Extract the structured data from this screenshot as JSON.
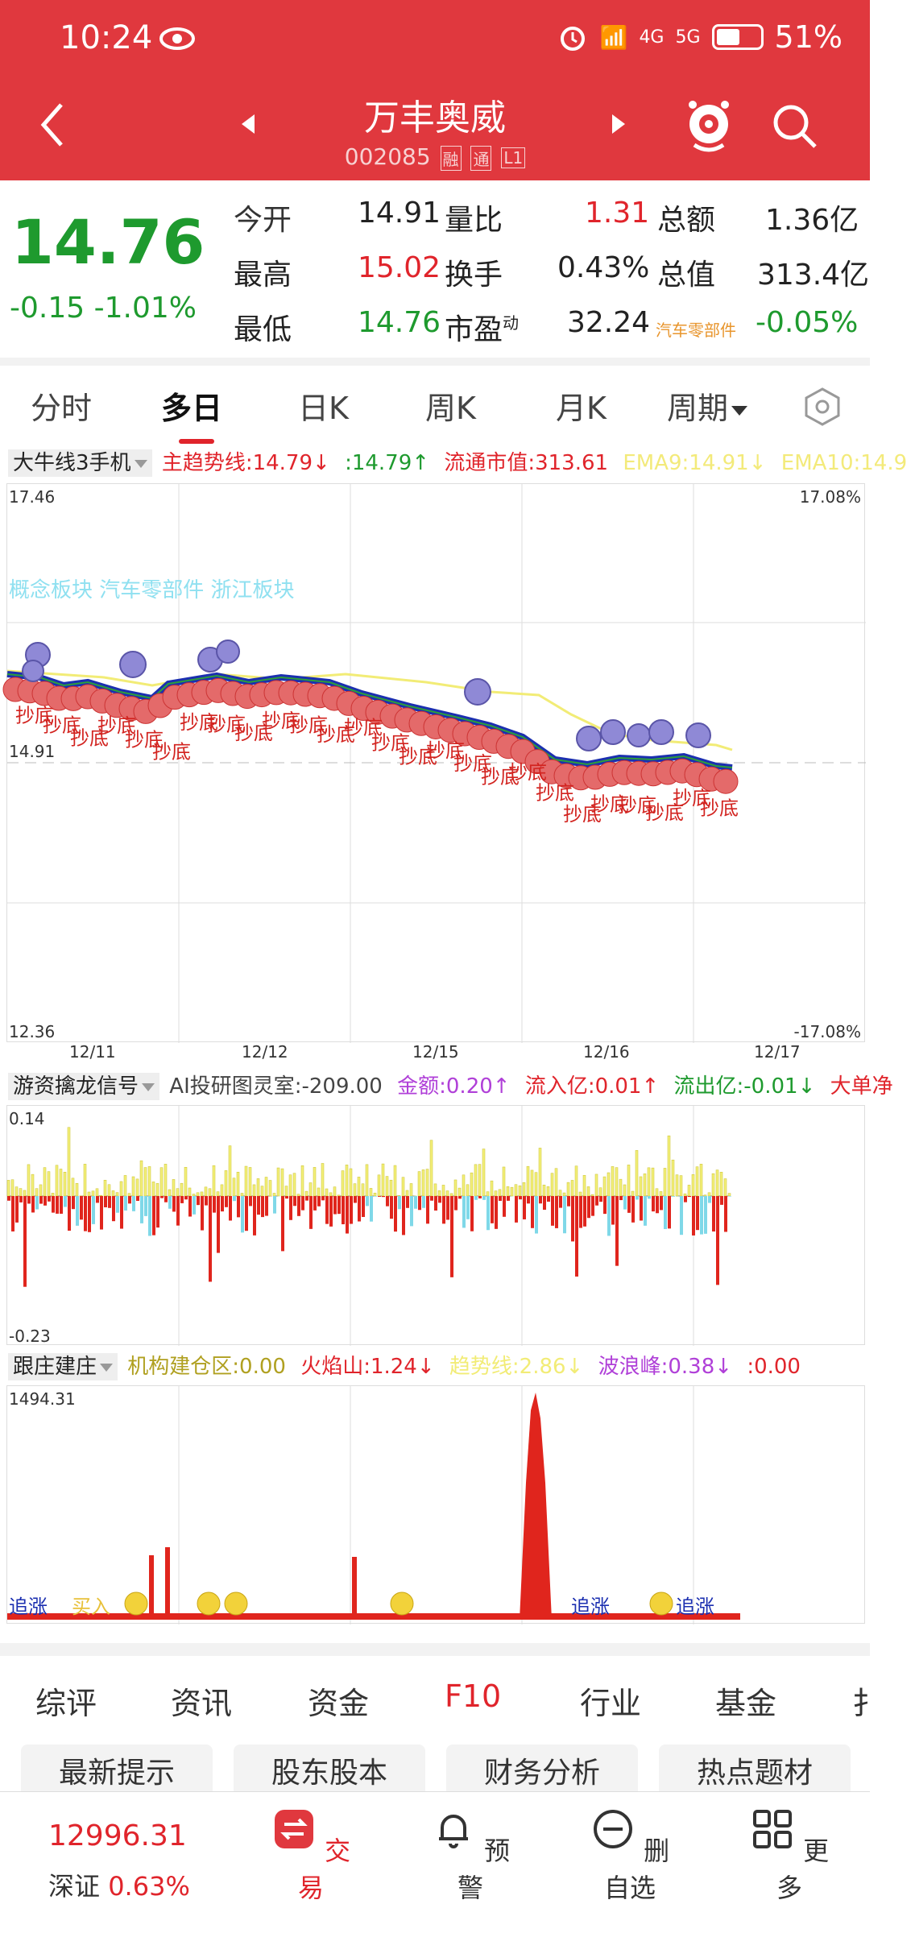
{
  "status_bar": {
    "time": "10:24",
    "network_6": "6",
    "network_4g": "4G",
    "network_5g": "5G",
    "battery": "51%"
  },
  "nav": {
    "title": "万丰奥威",
    "code": "002085",
    "tags": [
      "融",
      "通",
      "L1"
    ]
  },
  "quote": {
    "price": "14.76",
    "change": "-0.15",
    "change_pct": "-1.01%",
    "rows": [
      [
        {
          "label": "今开",
          "value": "14.91"
        },
        {
          "label": "量比",
          "value": "1.31"
        },
        {
          "label": "总额",
          "value": "1.36亿"
        }
      ],
      [
        {
          "label": "最高",
          "value": "15.02"
        },
        {
          "label": "换手",
          "value": "0.43%"
        },
        {
          "label": "总值",
          "value": "313.4亿"
        }
      ],
      [
        {
          "label": "最低",
          "value": "14.76"
        },
        {
          "label": "市盈",
          "sup": "动",
          "value": "32.24"
        },
        {
          "label": "汽车零部件",
          "value": "-0.05%"
        }
      ]
    ]
  },
  "tabs": [
    "分时",
    "多日",
    "日K",
    "周K",
    "月K",
    "周期"
  ],
  "main_chart": {
    "indicator": "大牛线3手机",
    "items": [
      "主趋势线:14.79↓",
      ":14.79↑",
      "流通市值:313.61",
      "EMA9:14.91↓",
      "EMA10:14.9"
    ],
    "y_top": "17.46",
    "y_mid": "14.91",
    "y_bot": "12.36",
    "pct_top": "17.08%",
    "pct_bot": "-17.08%",
    "dates": [
      "12/11",
      "12/12",
      "12/15",
      "12/16",
      "12/17"
    ],
    "overlay_text": "概念板块 汽车零部件 浙江板块",
    "marker_label": "抄底"
  },
  "sub1": {
    "indicator": "游资擒龙信号",
    "items": [
      "AI投研图灵室:-209.00",
      "金额:0.20↑",
      "流入亿:0.01↑",
      "流出亿:-0.01↓",
      "大单净"
    ],
    "y_top": "0.14",
    "y_bot": "-0.23"
  },
  "sub2": {
    "indicator": "跟庄建庄",
    "items": [
      "机构建仓区:0.00",
      "火焰山:1.24↓",
      "趋势线:2.86↓",
      "波浪峰:0.38↓",
      ":0.00"
    ],
    "y_top": "1494.31",
    "labels": [
      "追涨",
      "买入",
      "追涨",
      "追涨"
    ]
  },
  "sub_tabs": [
    "综评",
    "资讯",
    "资金",
    "F10",
    "行业",
    "基金",
    "扌"
  ],
  "chips": [
    "最新提示",
    "股东股本",
    "财务分析",
    "热点题材"
  ],
  "bottom": {
    "index_value": "12996.31",
    "index_name": "深证",
    "index_pct": "0.63%",
    "items": [
      "交易",
      "预警",
      "删自选",
      "更多"
    ]
  },
  "colors": {
    "header_red": "#e0383e",
    "up_red": "#e0242b",
    "down_green": "#1e9a2e"
  }
}
